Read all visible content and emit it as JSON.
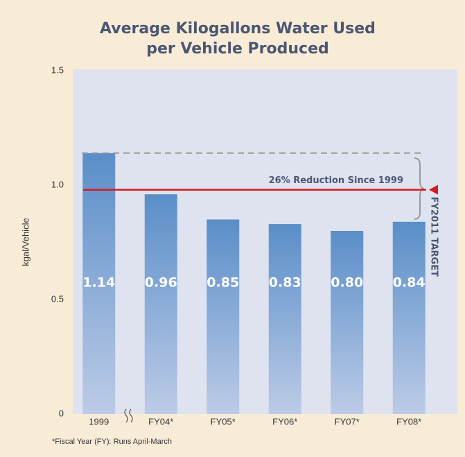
{
  "chart_data": {
    "type": "bar",
    "title_lines": [
      "Average Kilogallons Water Used",
      "per Vehicle Produced"
    ],
    "y_axis_label": "kgal/Vehicle",
    "categories": [
      "1999",
      "FY04*",
      "FY05*",
      "FY06*",
      "FY07*",
      "FY08*"
    ],
    "values": [
      1.14,
      0.96,
      0.85,
      0.83,
      0.8,
      0.84
    ],
    "value_labels": [
      "1.14",
      "0.96",
      "0.85",
      "0.83",
      "0.80",
      "0.84"
    ],
    "ylim": [
      0,
      1.5
    ],
    "yticks": [
      0,
      0.5,
      {
        "value": 1,
        "label": "1.0"
      },
      1.5
    ],
    "grid": false,
    "target_value": 0.98,
    "annotations": [
      "26% Reduction Since 1999",
      "FY2011 TARGET"
    ],
    "footnote": "*Fiscal Year (FY): Runs April-March"
  }
}
